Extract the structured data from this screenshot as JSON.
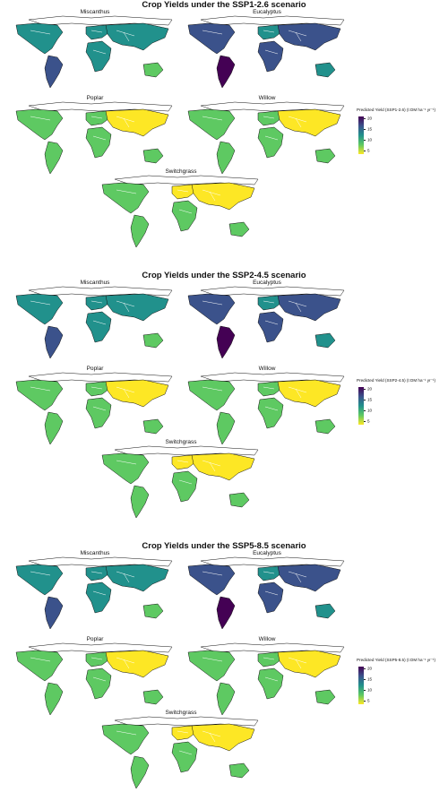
{
  "panels": [
    {
      "title": "Crop Yields under the SSP1-2.6 scenario",
      "legend": {
        "title": "Predicted Yield (SSP1-2.6) (t DM ha⁻¹ yr⁻¹)",
        "ticks": [
          "20",
          "15",
          "10",
          "5"
        ]
      },
      "maps": [
        {
          "label": "Miscanthus"
        },
        {
          "label": "Eucalyptus"
        },
        {
          "label": "Poplar"
        },
        {
          "label": "Willow"
        },
        {
          "label": "Switchgrass"
        }
      ]
    },
    {
      "title": "Crop Yields under the SSP2-4.5 scenario",
      "legend": {
        "title": "Predicted Yield (SSP2-4.5) (t DM ha⁻¹ yr⁻¹)",
        "ticks": [
          "20",
          "15",
          "10",
          "5"
        ]
      },
      "maps": [
        {
          "label": "Miscanthus"
        },
        {
          "label": "Eucalyptus"
        },
        {
          "label": "Poplar"
        },
        {
          "label": "Willow"
        },
        {
          "label": "Switchgrass"
        }
      ]
    },
    {
      "title": "Crop Yields under the SSP5-8.5 scenario",
      "legend": {
        "title": "Predicted Yield (SSP5-8.5) (t DM ha⁻¹ yr⁻¹)",
        "ticks": [
          "20",
          "15",
          "10",
          "5"
        ]
      },
      "maps": [
        {
          "label": "Miscanthus"
        },
        {
          "label": "Eucalyptus"
        },
        {
          "label": "Poplar"
        },
        {
          "label": "Willow"
        },
        {
          "label": "Switchgrass"
        }
      ]
    }
  ],
  "colors": {
    "high": "#440154",
    "mid_high": "#3b528b",
    "mid": "#21918c",
    "mid_low": "#5ec962",
    "low": "#fde725",
    "land_outline": "#111111"
  }
}
